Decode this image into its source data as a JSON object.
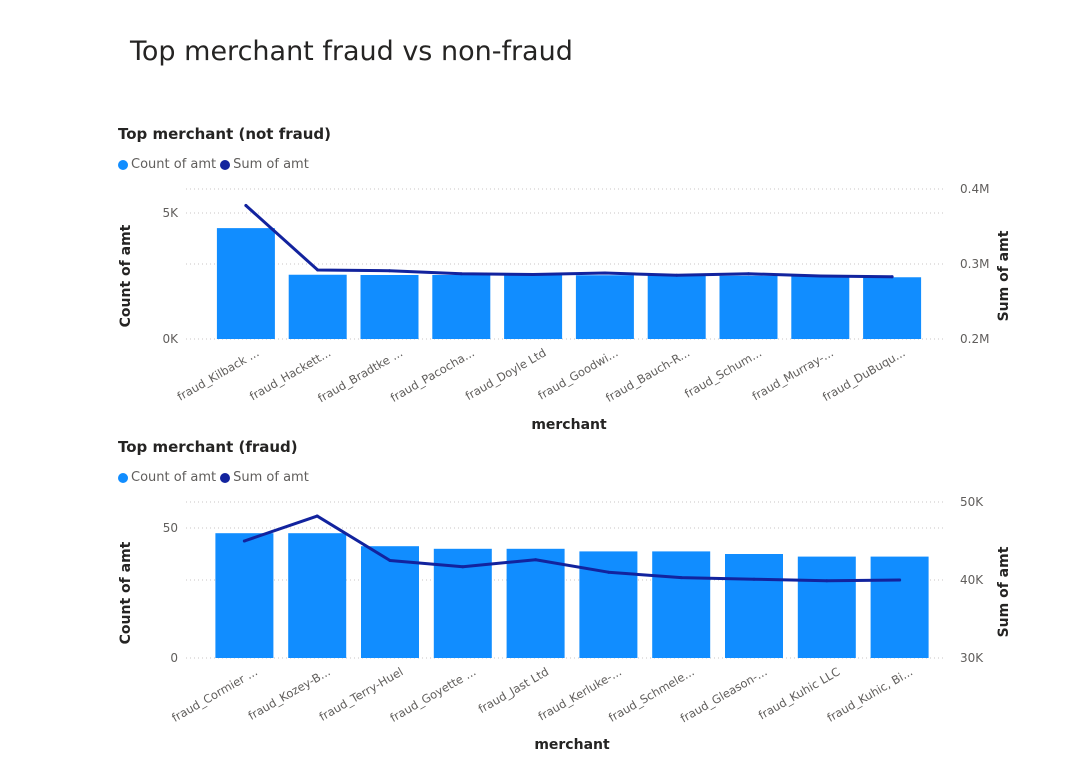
{
  "page": {
    "title": "Top merchant fraud vs non-fraud"
  },
  "colors": {
    "bar": "#118DFF",
    "line": "#12239E",
    "gridline": "#c8c6c4",
    "axis_text": "#605e5c"
  },
  "chart_data": [
    {
      "type": "bar",
      "title": "Top merchant (not fraud)",
      "legend": [
        {
          "name": "Count of amt",
          "color": "#118DFF"
        },
        {
          "name": "Sum of amt",
          "color": "#12239E"
        }
      ],
      "legend_position": "top-left",
      "xlabel": "merchant",
      "ylabel": "Count of amt",
      "y2label": "Sum of amt",
      "categories": [
        "fraud_Kilback ...",
        "fraud_Hackett...",
        "fraud_Bradtke ...",
        "fraud_Pacocha...",
        "fraud_Doyle Ltd",
        "fraud_Goodwi...",
        "fraud_Bauch-R...",
        "fraud_Schum...",
        "fraud_Murray-...",
        "fraud_DuBuqu..."
      ],
      "series": [
        {
          "name": "Count of amt",
          "axis": "left",
          "kind": "bar",
          "values": [
            4400,
            2550,
            2540,
            2540,
            2540,
            2530,
            2520,
            2510,
            2500,
            2450
          ]
        },
        {
          "name": "Sum of amt",
          "axis": "right",
          "kind": "line",
          "values": [
            378000,
            292000,
            291000,
            287000,
            286000,
            288000,
            285000,
            287000,
            284000,
            283000
          ]
        }
      ],
      "ylim": [
        0,
        5000
      ],
      "y_ticks": [
        0,
        5000
      ],
      "y_tick_labels": [
        "0K",
        "5K"
      ],
      "y2lim": [
        200000,
        400000
      ],
      "y2_ticks": [
        200000,
        300000,
        400000
      ],
      "y2_tick_labels": [
        "0.2M",
        "0.3M",
        "0.4M"
      ],
      "grid": true
    },
    {
      "type": "bar",
      "title": "Top merchant (fraud)",
      "legend": [
        {
          "name": "Count of amt",
          "color": "#118DFF"
        },
        {
          "name": "Sum of amt",
          "color": "#12239E"
        }
      ],
      "legend_position": "top-left",
      "xlabel": "merchant",
      "ylabel": "Count of amt",
      "y2label": "Sum of amt",
      "categories": [
        "fraud_Cormier ...",
        "fraud_Kozey-B...",
        "fraud_Terry-Huel",
        "fraud_Goyette ...",
        "fraud_Jast Ltd",
        "fraud_Kerluke-...",
        "fraud_Schmele...",
        "fraud_Gleason-...",
        "fraud_Kuhic LLC",
        "fraud_Kuhic, Bi..."
      ],
      "series": [
        {
          "name": "Count of amt",
          "axis": "left",
          "kind": "bar",
          "values": [
            48,
            48,
            43,
            42,
            42,
            41,
            41,
            40,
            39,
            39
          ]
        },
        {
          "name": "Sum of amt",
          "axis": "right",
          "kind": "line",
          "values": [
            45000,
            48200,
            42500,
            41700,
            42600,
            41000,
            40300,
            40100,
            39900,
            40000
          ]
        }
      ],
      "ylim": [
        0,
        50
      ],
      "y_ticks": [
        0,
        50
      ],
      "y_tick_labels": [
        "0",
        "50"
      ],
      "y2lim": [
        30000,
        50000
      ],
      "y2_ticks": [
        30000,
        40000,
        50000
      ],
      "y2_tick_labels": [
        "30K",
        "40K",
        "50K"
      ],
      "grid": true
    }
  ]
}
